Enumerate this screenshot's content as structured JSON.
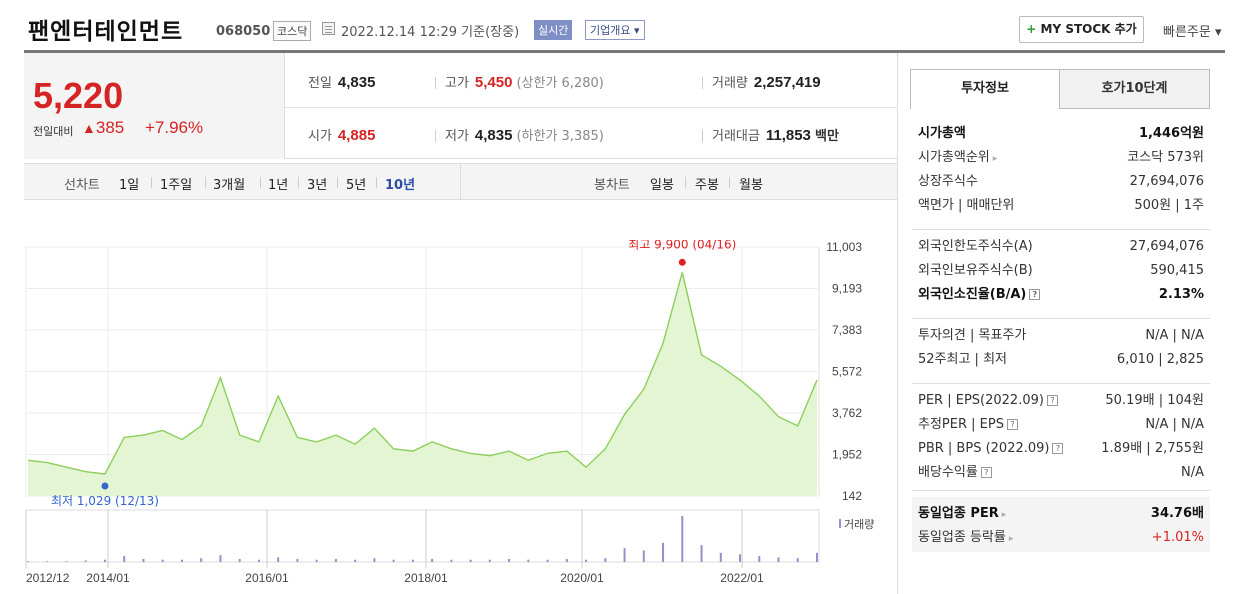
{
  "header": {
    "company_name": "팬엔터테인먼트",
    "code": "068050",
    "market": "코스닥",
    "datetime": "2022.12.14 12:29 기준(장중)",
    "realtime": "실시간",
    "overview": "기업개요 ▾",
    "mystock_plus": "+",
    "mystock": "MY STOCK 추가",
    "quick_order": "빠른주문 ▾"
  },
  "quote": {
    "price": "5,220",
    "change_label": "전일대비",
    "change_arrow": "▲",
    "change": "385",
    "change_pct": "+7.96%",
    "prev_label": "전일",
    "prev": "4,835",
    "open_label": "시가",
    "open": "4,885",
    "high_label": "고가",
    "high": "5,450",
    "upper_limit": "(상한가 6,280)",
    "low_label": "저가",
    "low": "4,835",
    "lower_limit": "(하한가 3,385)",
    "volume_label": "거래량",
    "volume": "2,257,419",
    "amount_label": "거래대금",
    "amount": "11,853",
    "amount_unit": "백만"
  },
  "periods": {
    "line_label": "선차트",
    "line_items": [
      "1일",
      "1주일",
      "3개월",
      "1년",
      "3년",
      "5년",
      "10년"
    ],
    "active": "10년",
    "candle_label": "봉차트",
    "candle_items": [
      "일봉",
      "주봉",
      "월봉"
    ]
  },
  "chart_data": {
    "type": "area",
    "y_ticks": [
      "11,003",
      "9,193",
      "7,383",
      "5,572",
      "3,762",
      "1,952",
      "142"
    ],
    "ylim": [
      142,
      11003
    ],
    "x_ticks": [
      "2012/12",
      "2014/01",
      "2016/01",
      "2018/01",
      "2020/01",
      "2022/01"
    ],
    "max_label": "최고 9,900 (04/16)",
    "min_label": "최저 1,029 (12/13)",
    "volume_label": "거래량",
    "line_color": "#8ccf5a",
    "fill_color": "#e4f5d4",
    "volume_color": "#9c8cc9",
    "series": [
      {
        "x": [
          "2012/12",
          "2013/03",
          "2013/06",
          "2013/09",
          "2013/12",
          "2014/03",
          "2014/06",
          "2014/09",
          "2014/12",
          "2015/03",
          "2015/06",
          "2015/09",
          "2015/12",
          "2016/03",
          "2016/06",
          "2016/09",
          "2016/12",
          "2017/03",
          "2017/06",
          "2017/09",
          "2017/12",
          "2018/03",
          "2018/06",
          "2018/09",
          "2018/12",
          "2019/03",
          "2019/06",
          "2019/09",
          "2019/12",
          "2020/03",
          "2020/06",
          "2020/09",
          "2020/12",
          "2021/03",
          "2021/04",
          "2021/06",
          "2021/09",
          "2021/12",
          "2022/03",
          "2022/06",
          "2022/09",
          "2022/12"
        ],
        "values": [
          1700,
          1600,
          1400,
          1200,
          1100,
          2700,
          2800,
          3000,
          2600,
          3200,
          5300,
          2800,
          2500,
          4500,
          2700,
          2500,
          2800,
          2400,
          3100,
          2200,
          2100,
          2500,
          2200,
          2000,
          1900,
          2100,
          1700,
          2000,
          2100,
          1400,
          2200,
          3700,
          4800,
          6800,
          9900,
          6300,
          5800,
          5200,
          4500,
          3600,
          3200,
          5200
        ]
      }
    ],
    "volume": [
      1,
      1,
      1,
      2,
      3,
      8,
      4,
      3,
      3,
      5,
      9,
      4,
      3,
      6,
      4,
      3,
      4,
      3,
      5,
      3,
      3,
      4,
      3,
      3,
      3,
      4,
      3,
      3,
      4,
      3,
      5,
      18,
      15,
      25,
      60,
      22,
      12,
      10,
      8,
      6,
      5,
      12
    ]
  },
  "right_panel": {
    "tabs": [
      "투자정보",
      "호가10단계"
    ],
    "rows": [
      {
        "k": "시가총액",
        "v": "1,446억원",
        "bold": true
      },
      {
        "k": "시가총액순위",
        "v": "코스닥 573위",
        "arrow": true
      },
      {
        "k": "상장주식수",
        "v": "27,694,076"
      },
      {
        "k": "액면가 | 매매단위",
        "v": "500원 | 1주"
      },
      {
        "k": "외국인한도주식수(A)",
        "v": "27,694,076"
      },
      {
        "k": "외국인보유주식수(B)",
        "v": "590,415"
      },
      {
        "k": "외국인소진율(B/A)",
        "v": "2.13%",
        "bold": true,
        "q": true
      },
      {
        "k": "투자의견 | 목표주가",
        "v": "N/A | N/A"
      },
      {
        "k": "52주최고 | 최저",
        "v": "6,010 | 2,825"
      },
      {
        "k": "PER | EPS(2022.09)",
        "v": "50.19배 | 104원",
        "q": true
      },
      {
        "k": "추정PER | EPS",
        "v": "N/A | N/A",
        "q": true
      },
      {
        "k": "PBR | BPS (2022.09)",
        "v": "1.89배 | 2,755원",
        "q": true
      },
      {
        "k": "배당수익률",
        "v": "N/A",
        "q": true
      },
      {
        "k": "동일업종 PER",
        "v": "34.76배",
        "bold": true,
        "arrow": true
      },
      {
        "k": "동일업종 등락률",
        "v": "+1.01%",
        "red": true,
        "arrow": true
      }
    ]
  }
}
